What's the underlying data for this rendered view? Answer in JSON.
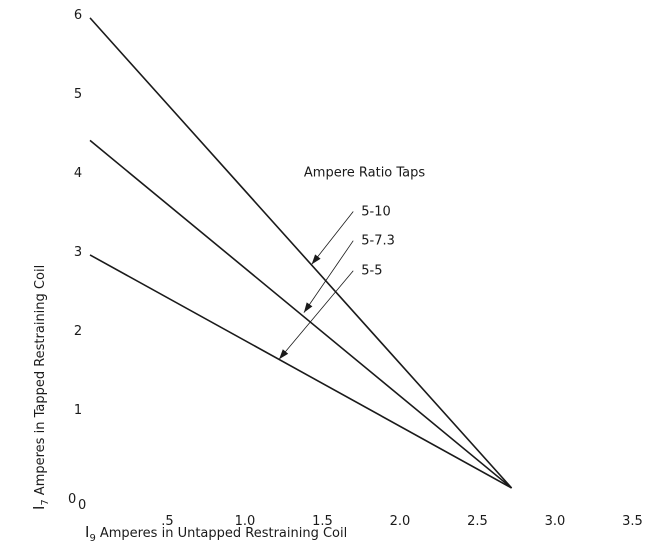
{
  "chart_data": {
    "type": "line",
    "title": "",
    "xlabel_main": "Amperes in Untapped Restraining Coil",
    "xlabel_symbol": "I",
    "xlabel_subscript": "9",
    "ylabel_main": "Amperes in Tapped Restraining Coil",
    "ylabel_symbol": "I",
    "ylabel_subscript": "7",
    "xlim": [
      0,
      3.5
    ],
    "ylim": [
      0,
      6
    ],
    "x_ticks": [
      {
        "value": 0.5,
        "label": ".5"
      },
      {
        "value": 1.0,
        "label": "1.0"
      },
      {
        "value": 1.5,
        "label": "1.5"
      },
      {
        "value": 2.0,
        "label": "2.0"
      },
      {
        "value": 2.5,
        "label": "2.5"
      },
      {
        "value": 3.0,
        "label": "3.0"
      },
      {
        "value": 3.5,
        "label": "3.5"
      }
    ],
    "y_ticks": [
      {
        "value": 1,
        "label": "1"
      },
      {
        "value": 2,
        "label": "2"
      },
      {
        "value": 3,
        "label": "3"
      },
      {
        "value": 4,
        "label": "4"
      },
      {
        "value": 5,
        "label": "5"
      },
      {
        "value": 6,
        "label": "6"
      }
    ],
    "origin_x_label": "0",
    "origin_y_label": "0",
    "grid": false,
    "legend_title": "Ampere Ratio Taps",
    "series": [
      {
        "name": "5-10",
        "x": [
          0,
          2.72
        ],
        "y": [
          5.95,
          0
        ],
        "arrow_point": {
          "x": 1.43,
          "y": 2.83
        },
        "label_anchor": {
          "x": 1.75,
          "y": 3.45
        }
      },
      {
        "name": "5-7.3",
        "x": [
          0,
          2.72
        ],
        "y": [
          4.4,
          0
        ],
        "arrow_point": {
          "x": 1.38,
          "y": 2.22
        },
        "label_anchor": {
          "x": 1.75,
          "y": 3.08
        }
      },
      {
        "name": "5-5",
        "x": [
          0,
          2.72
        ],
        "y": [
          2.95,
          0
        ],
        "arrow_point": {
          "x": 1.22,
          "y": 1.63
        },
        "label_anchor": {
          "x": 1.75,
          "y": 2.7
        }
      }
    ]
  }
}
